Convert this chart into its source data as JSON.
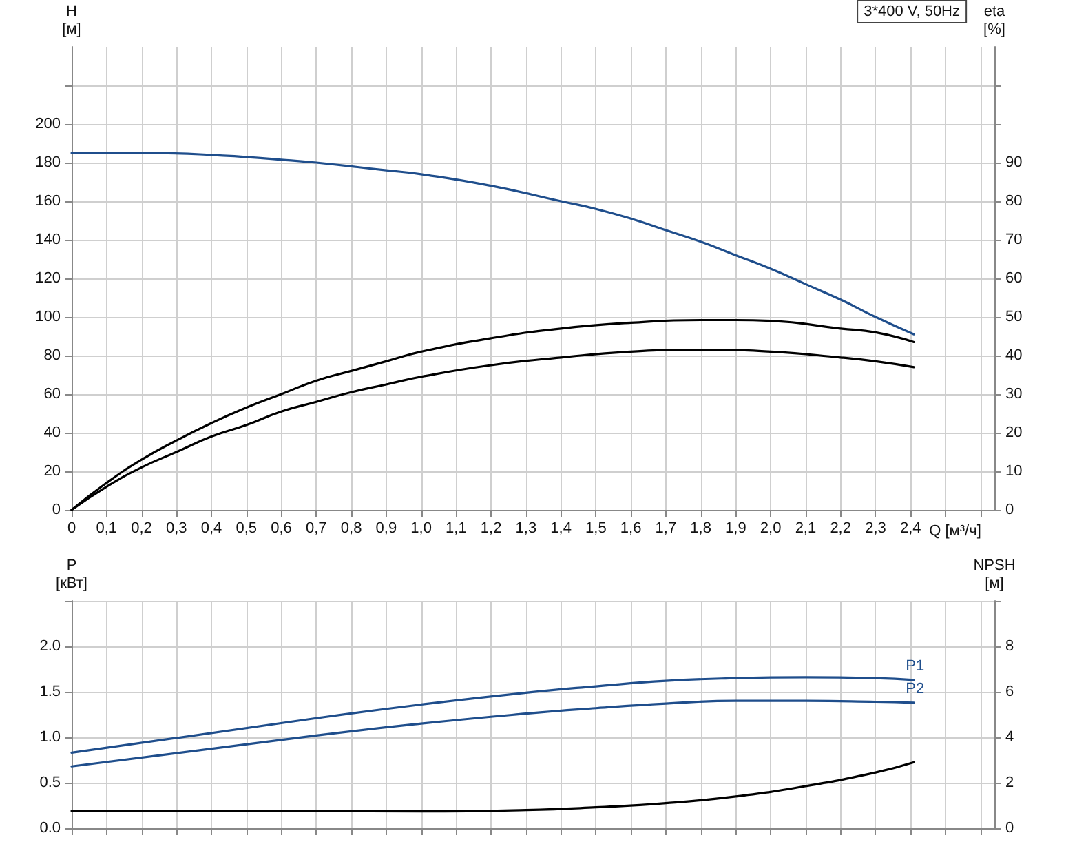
{
  "chart_data": [
    {
      "type": "line",
      "title": "3*400 V, 50Hz",
      "xlabel": "Q [м³/ч]",
      "ylabel": "H\n[м]",
      "y2label": "eta\n[%]",
      "grid": true,
      "legend": false,
      "marker": "none",
      "line_style": "solid",
      "xlim": [
        0,
        2.64
      ],
      "xticks": [
        {
          "value": 0,
          "label": "0"
        },
        {
          "value": 0.1,
          "label": "0,1"
        },
        {
          "value": 0.2,
          "label": "0,2"
        },
        {
          "value": 0.3,
          "label": "0,3"
        },
        {
          "value": 0.4,
          "label": "0,4"
        },
        {
          "value": 0.5,
          "label": "0,5"
        },
        {
          "value": 0.6,
          "label": "0,6"
        },
        {
          "value": 0.7,
          "label": "0,7"
        },
        {
          "value": 0.8,
          "label": "0,8"
        },
        {
          "value": 0.9,
          "label": "0,9"
        },
        {
          "value": 1.0,
          "label": "1,0"
        },
        {
          "value": 1.1,
          "label": "1,1"
        },
        {
          "value": 1.2,
          "label": "1,2"
        },
        {
          "value": 1.3,
          "label": "1,3"
        },
        {
          "value": 1.4,
          "label": "1,4"
        },
        {
          "value": 1.5,
          "label": "1,5"
        },
        {
          "value": 1.6,
          "label": "1,6"
        },
        {
          "value": 1.7,
          "label": "1,7"
        },
        {
          "value": 1.8,
          "label": "1,8"
        },
        {
          "value": 1.9,
          "label": "1,9"
        },
        {
          "value": 2.0,
          "label": "2,0"
        },
        {
          "value": 2.1,
          "label": "2,1"
        },
        {
          "value": 2.2,
          "label": "2,2"
        },
        {
          "value": 2.3,
          "label": "2,3"
        },
        {
          "value": 2.4,
          "label": "2,4"
        },
        {
          "value": 2.5,
          "label": null
        },
        {
          "value": 2.6,
          "label": null
        }
      ],
      "ylim": [
        0,
        240
      ],
      "yticks": [
        0,
        20,
        40,
        60,
        80,
        100,
        120,
        140,
        160,
        180,
        200,
        {
          "value": 220,
          "label": null
        }
      ],
      "y2lim": [
        0,
        120
      ],
      "y2ticks": [
        0,
        10,
        20,
        30,
        40,
        50,
        60,
        70,
        80,
        90,
        {
          "value": 100,
          "label": null
        },
        {
          "value": 110,
          "label": null
        }
      ],
      "series": [
        {
          "color": "#1f4e8c",
          "x": [
            0,
            0.2,
            0.4,
            0.6,
            0.7,
            0.9,
            1.0,
            1.2,
            1.4,
            1.5,
            1.6,
            1.7,
            1.8,
            1.9,
            2.0,
            2.1,
            2.2,
            2.3,
            2.41
          ],
          "values": [
            185,
            185,
            184,
            181.5,
            180,
            176,
            174,
            168,
            160,
            156,
            151,
            145,
            139,
            132,
            125,
            117,
            109,
            100,
            91
          ]
        },
        {
          "color": "#000000",
          "axis": "y2",
          "x": [
            0,
            0.1,
            0.2,
            0.3,
            0.4,
            0.5,
            0.6,
            0.7,
            0.8,
            0.9,
            1.0,
            1.2,
            1.4,
            1.6,
            1.8,
            1.9,
            2.0,
            2.2,
            2.3,
            2.41
          ],
          "values": [
            0,
            7,
            13,
            18,
            22.5,
            26.5,
            30,
            33.5,
            36,
            38.5,
            41,
            44.5,
            47,
            48.5,
            49.2,
            49.2,
            49,
            47,
            46,
            43.5
          ]
        },
        {
          "color": "#000000",
          "axis": "y2",
          "x": [
            0,
            0.1,
            0.2,
            0.3,
            0.4,
            0.5,
            0.6,
            0.7,
            0.8,
            0.9,
            1.0,
            1.2,
            1.4,
            1.6,
            1.8,
            2.0,
            2.2,
            2.3,
            2.41
          ],
          "values": [
            0,
            6,
            11,
            15,
            19,
            22,
            25.5,
            28,
            30.5,
            32.5,
            34.5,
            37.5,
            39.5,
            41,
            41.5,
            41,
            39.5,
            38.5,
            37
          ]
        }
      ]
    },
    {
      "type": "line",
      "ylabel": "P\n[кВт]",
      "y2label": "NPSH\n[м]",
      "grid": true,
      "legend": false,
      "marker": "none",
      "line_style": "solid",
      "tick_labels": "y",
      "xlim": [
        0,
        2.64
      ],
      "xticks": [
        0,
        0.1,
        0.2,
        0.3,
        0.4,
        0.5,
        0.6,
        0.7,
        0.8,
        0.9,
        1.0,
        1.1,
        1.2,
        1.3,
        1.4,
        1.5,
        1.6,
        1.7,
        1.8,
        1.9,
        2.0,
        2.1,
        2.2,
        2.3,
        2.4,
        2.5,
        2.6
      ],
      "ylim": [
        0,
        2.5
      ],
      "yticks": [
        {
          "value": 0,
          "label": "0.0"
        },
        0.5,
        {
          "value": 1,
          "label": "1.0"
        },
        1.5,
        {
          "value": 2,
          "label": "2.0"
        },
        {
          "value": 2.5,
          "label": null
        }
      ],
      "y2lim": [
        0,
        10
      ],
      "y2ticks": [
        0,
        2,
        4,
        6,
        8,
        {
          "value": 10,
          "label": null
        }
      ],
      "series": [
        {
          "name": "P1",
          "color": "#1f4e8c",
          "x": [
            0,
            0.7,
            1.0,
            1.3,
            1.5,
            1.7,
            1.9,
            2.1,
            2.3,
            2.41
          ],
          "values": [
            0.83,
            1.21,
            1.36,
            1.49,
            1.56,
            1.62,
            1.65,
            1.66,
            1.65,
            1.63
          ]
        },
        {
          "name": "P2",
          "color": "#1f4e8c",
          "x": [
            0,
            0.7,
            1.0,
            1.3,
            1.5,
            1.7,
            1.9,
            2.1,
            2.3,
            2.41
          ],
          "values": [
            0.68,
            1.02,
            1.15,
            1.26,
            1.32,
            1.37,
            1.4,
            1.4,
            1.39,
            1.38
          ]
        },
        {
          "color": "#000000",
          "axis": "y2",
          "x": [
            0,
            0.7,
            1.0,
            1.3,
            1.5,
            1.7,
            1.9,
            2.1,
            2.3,
            2.41
          ],
          "values": [
            0.76,
            0.75,
            0.74,
            0.8,
            0.92,
            1.1,
            1.4,
            1.85,
            2.45,
            2.9
          ]
        }
      ]
    }
  ]
}
